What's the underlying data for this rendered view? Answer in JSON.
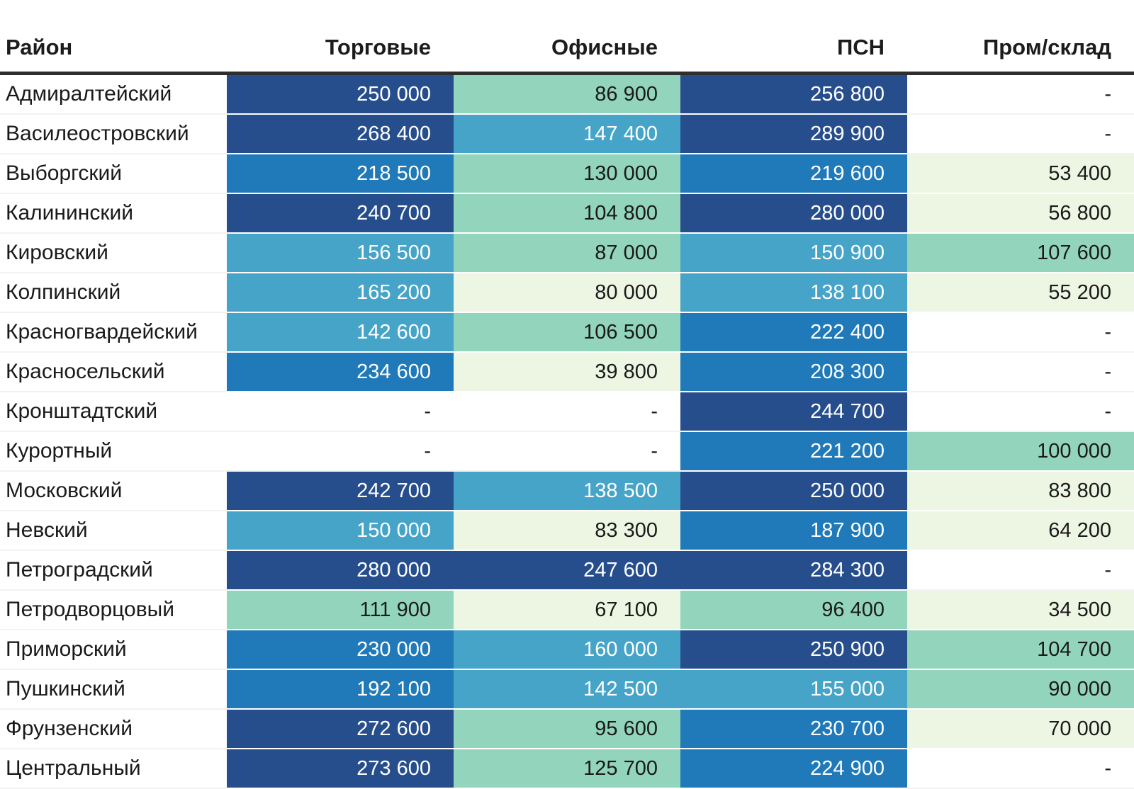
{
  "chart_data": {
    "type": "heatmap",
    "columns": [
      "Район",
      "Торговые",
      "Офисные",
      "ПСН",
      "Пром/склад"
    ],
    "categories": [
      "Адмиралтейский",
      "Василеостровский",
      "Выборгский",
      "Калининский",
      "Кировский",
      "Колпинский",
      "Красногвардейский",
      "Красносельский",
      "Кронштадтский",
      "Курортный",
      "Московский",
      "Невский",
      "Петроградский",
      "Петродворцовый",
      "Приморский",
      "Пушкинский",
      "Фрунзенский",
      "Центральный"
    ],
    "series": [
      {
        "name": "Торговые",
        "values": [
          250000,
          268400,
          218500,
          240700,
          156500,
          165200,
          142600,
          234600,
          null,
          null,
          242700,
          150000,
          280000,
          111900,
          230000,
          192100,
          272600,
          273600
        ]
      },
      {
        "name": "Офисные",
        "values": [
          86900,
          147400,
          130000,
          104800,
          87000,
          80000,
          106500,
          39800,
          null,
          null,
          138500,
          83300,
          247600,
          67100,
          160000,
          142500,
          95600,
          125700
        ]
      },
      {
        "name": "ПСН",
        "values": [
          256800,
          289900,
          219600,
          280000,
          150900,
          138100,
          222400,
          208300,
          244700,
          221200,
          250000,
          187900,
          284300,
          96400,
          250900,
          155000,
          230700,
          224900
        ]
      },
      {
        "name": "Пром/склад",
        "values": [
          null,
          null,
          53400,
          56800,
          107600,
          55200,
          null,
          null,
          null,
          100000,
          83800,
          64200,
          null,
          34500,
          104700,
          90000,
          70000,
          null
        ]
      }
    ],
    "empty_placeholder": "-",
    "value_format": "thousands separated by space",
    "colorscale": {
      "thresholds": [
        85000,
        135000,
        175000,
        237500
      ],
      "cell_colors": [
        "#EDF6E3",
        "#93D5BC",
        "#47A4C9",
        "#2079B8",
        "#274E8C"
      ],
      "text_colors": [
        "#1A1A1A",
        "#1A1A1A",
        "#FFFFFF",
        "#FFFFFF",
        "#FFFFFF"
      ],
      "legend": "low = pale green, high = dark navy blue"
    },
    "layout": {
      "header_rule_color": "#2E2E2E",
      "row_separator_color": "#F2F2F2",
      "background": "#FFFFFF"
    }
  }
}
